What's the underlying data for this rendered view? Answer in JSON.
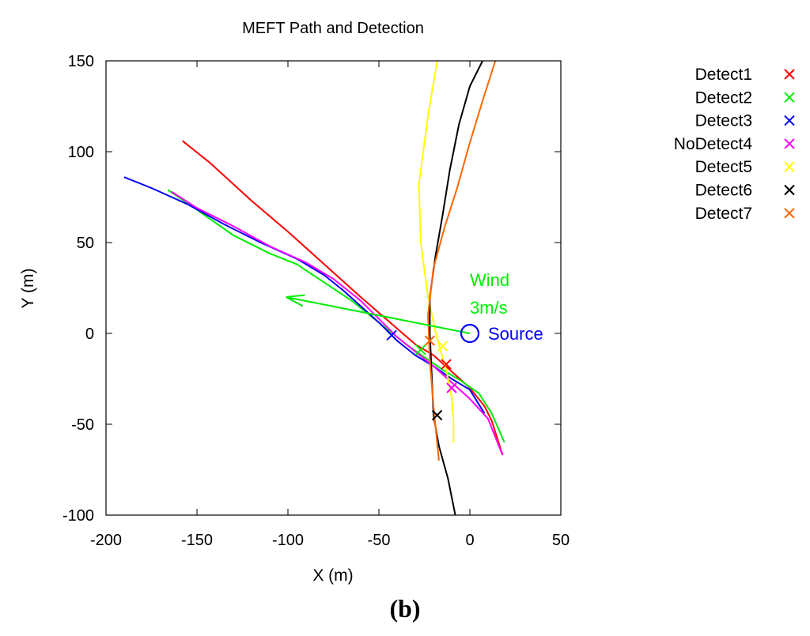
{
  "chart_data": {
    "type": "line",
    "title": "MEFT Path and Detection",
    "xlabel": "X (m)",
    "ylabel": "Y (m)",
    "xlim": [
      -200,
      50
    ],
    "ylim": [
      -100,
      150
    ],
    "xticks": [
      -200,
      -150,
      -100,
      -50,
      0,
      50
    ],
    "yticks": [
      -100,
      -50,
      0,
      50,
      100,
      150
    ],
    "grid": false,
    "legend_position": "outside-right",
    "series": [
      {
        "name": "Detect1",
        "color": "#ff0000",
        "path": [
          [
            -158,
            106
          ],
          [
            -143,
            94
          ],
          [
            -120,
            73
          ],
          [
            -100,
            56
          ],
          [
            -80,
            38
          ],
          [
            -60,
            20
          ],
          [
            -45,
            7
          ],
          [
            -30,
            -6
          ],
          [
            -20,
            -12
          ],
          [
            -10,
            -21
          ],
          [
            0,
            -30
          ],
          [
            8,
            -40
          ],
          [
            12,
            -48
          ],
          [
            18,
            -67
          ]
        ],
        "detect": [
          -13,
          -17
        ]
      },
      {
        "name": "Detect2",
        "color": "#00ee00",
        "path": [
          [
            -166,
            79
          ],
          [
            -150,
            68
          ],
          [
            -130,
            54
          ],
          [
            -110,
            44
          ],
          [
            -95,
            38
          ],
          [
            -80,
            28
          ],
          [
            -65,
            18
          ],
          [
            -55,
            10
          ],
          [
            -45,
            2
          ],
          [
            -35,
            -6
          ],
          [
            -25,
            -13
          ],
          [
            -15,
            -20
          ],
          [
            -5,
            -26
          ],
          [
            5,
            -33
          ],
          [
            12,
            -44
          ],
          [
            19,
            -60
          ]
        ],
        "detect": [
          -27,
          -9
        ]
      },
      {
        "name": "Detect3",
        "color": "#0000ff",
        "path": [
          [
            -190,
            86
          ],
          [
            -175,
            80
          ],
          [
            -155,
            71
          ],
          [
            -135,
            60
          ],
          [
            -115,
            50
          ],
          [
            -95,
            41
          ],
          [
            -80,
            32
          ],
          [
            -70,
            24
          ],
          [
            -60,
            15
          ],
          [
            -50,
            6
          ],
          [
            -40,
            -4
          ],
          [
            -30,
            -12
          ],
          [
            -20,
            -18
          ],
          [
            -10,
            -25
          ],
          [
            0,
            -31
          ],
          [
            8,
            -44
          ]
        ],
        "detect": [
          -43,
          -1
        ]
      },
      {
        "name": "NoDetect4",
        "color": "#ff00ff",
        "path": [
          [
            -164,
            78
          ],
          [
            -150,
            69
          ],
          [
            -130,
            59
          ],
          [
            -110,
            48
          ],
          [
            -90,
            39
          ],
          [
            -75,
            30
          ],
          [
            -60,
            18
          ],
          [
            -50,
            8
          ],
          [
            -40,
            -2
          ],
          [
            -30,
            -10
          ],
          [
            -20,
            -18
          ],
          [
            -10,
            -27
          ],
          [
            0,
            -36
          ],
          [
            10,
            -47
          ],
          [
            18,
            -67
          ]
        ],
        "detect": [
          -10,
          -30
        ]
      },
      {
        "name": "Detect5",
        "color": "#ffff00",
        "path": [
          [
            -18,
            150
          ],
          [
            -23,
            120
          ],
          [
            -28,
            82
          ],
          [
            -27,
            50
          ],
          [
            -23,
            20
          ],
          [
            -18,
            -3
          ],
          [
            -13,
            -20
          ],
          [
            -10,
            -35
          ],
          [
            -9,
            -48
          ],
          [
            -9,
            -60
          ]
        ],
        "detect": [
          -15,
          -7
        ]
      },
      {
        "name": "Detect6",
        "color": "#000000",
        "path": [
          [
            7,
            150
          ],
          [
            0,
            136
          ],
          [
            -6,
            115
          ],
          [
            -11,
            90
          ],
          [
            -15,
            65
          ],
          [
            -19,
            42
          ],
          [
            -22,
            20
          ],
          [
            -22,
            0
          ],
          [
            -21,
            -22
          ],
          [
            -20,
            -45
          ],
          [
            -17,
            -62
          ],
          [
            -12,
            -80
          ],
          [
            -8,
            -100
          ]
        ],
        "detect": [
          -18,
          -45
        ]
      },
      {
        "name": "Detect7",
        "color": "#ff6600",
        "path": [
          [
            14,
            150
          ],
          [
            7,
            128
          ],
          [
            0,
            105
          ],
          [
            -7,
            80
          ],
          [
            -14,
            58
          ],
          [
            -20,
            36
          ],
          [
            -23,
            10
          ],
          [
            -22,
            -15
          ],
          [
            -20,
            -40
          ],
          [
            -17,
            -70
          ]
        ],
        "detect": [
          -22,
          -4
        ]
      }
    ],
    "annotations": {
      "wind_label_1": "Wind",
      "wind_label_2": "3m/s",
      "wind_color": "#00ee00",
      "wind_vector": {
        "from": [
          0,
          0
        ],
        "to": [
          -101,
          20
        ]
      },
      "source_label": "Source",
      "source_color": "#0000ff",
      "source_point": [
        0,
        0
      ]
    },
    "marker": "×"
  },
  "caption": "(b)"
}
